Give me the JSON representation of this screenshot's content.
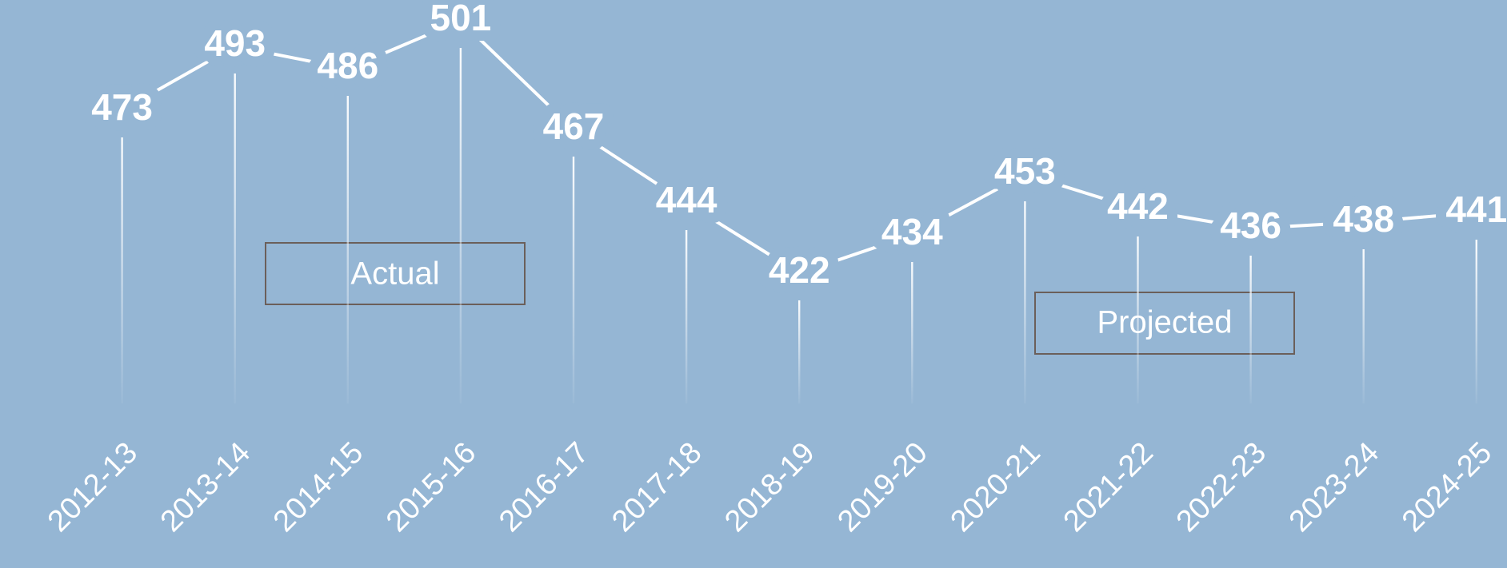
{
  "chart_data": {
    "type": "line",
    "categories": [
      "2012-13",
      "2013-14",
      "2014-15",
      "2015-16",
      "2016-17",
      "2017-18",
      "2018-19",
      "2019-20",
      "2020-21",
      "2021-22",
      "2022-23",
      "2023-24",
      "2024-25"
    ],
    "values": [
      473,
      493,
      486,
      501,
      467,
      444,
      422,
      434,
      453,
      442,
      436,
      438,
      441
    ],
    "color": "#ffffff",
    "annotations": [
      "Actual",
      "Projected"
    ]
  }
}
